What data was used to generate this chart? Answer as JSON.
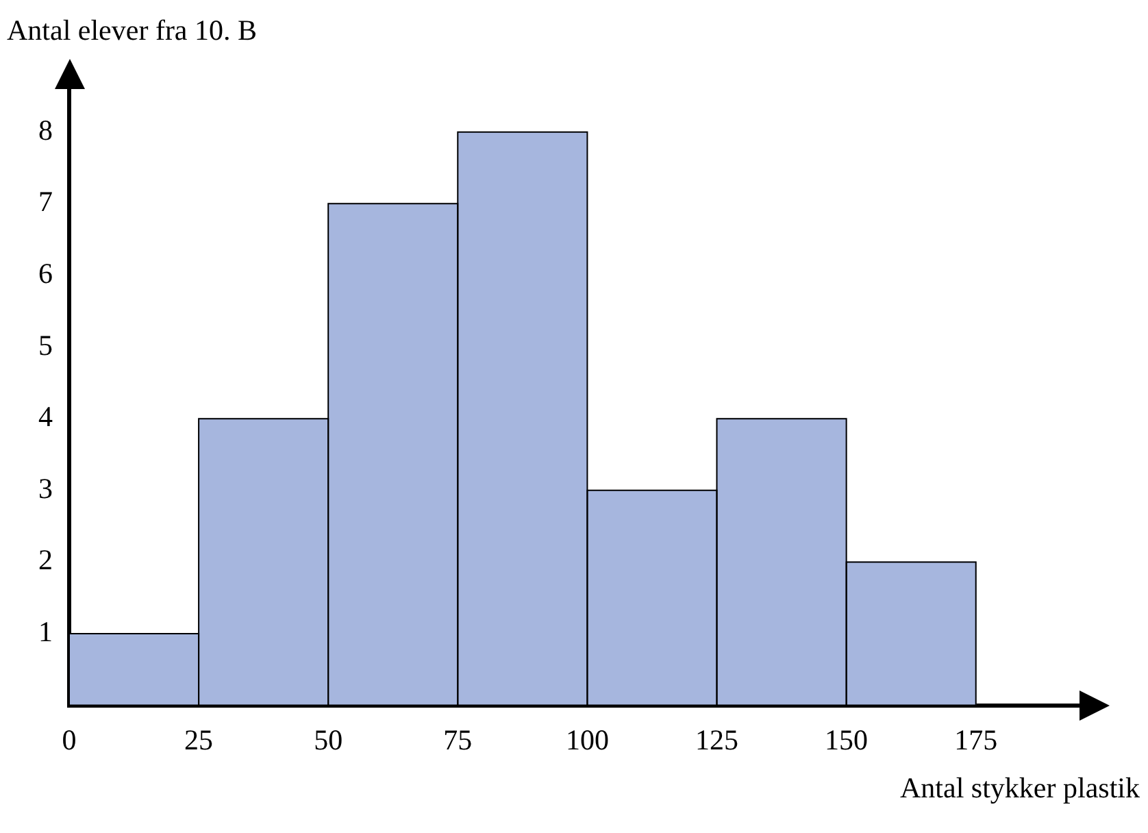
{
  "chart_data": {
    "type": "histogram",
    "xlabel": "Antal stykker plastik",
    "ylabel": "Antal elever fra 10. B",
    "bins": [
      0,
      25,
      50,
      75,
      100,
      125,
      150,
      175
    ],
    "values": [
      1,
      4,
      7,
      8,
      3,
      4,
      2
    ],
    "color": "#a6b6de",
    "xlim": [
      0,
      195
    ],
    "ylim": [
      0,
      8.6
    ],
    "xticks": [
      0,
      25,
      50,
      75,
      100,
      125,
      150,
      175
    ],
    "yticks": [
      1,
      2,
      3,
      4,
      5,
      6,
      7,
      8
    ],
    "grid": false,
    "legend": false
  }
}
